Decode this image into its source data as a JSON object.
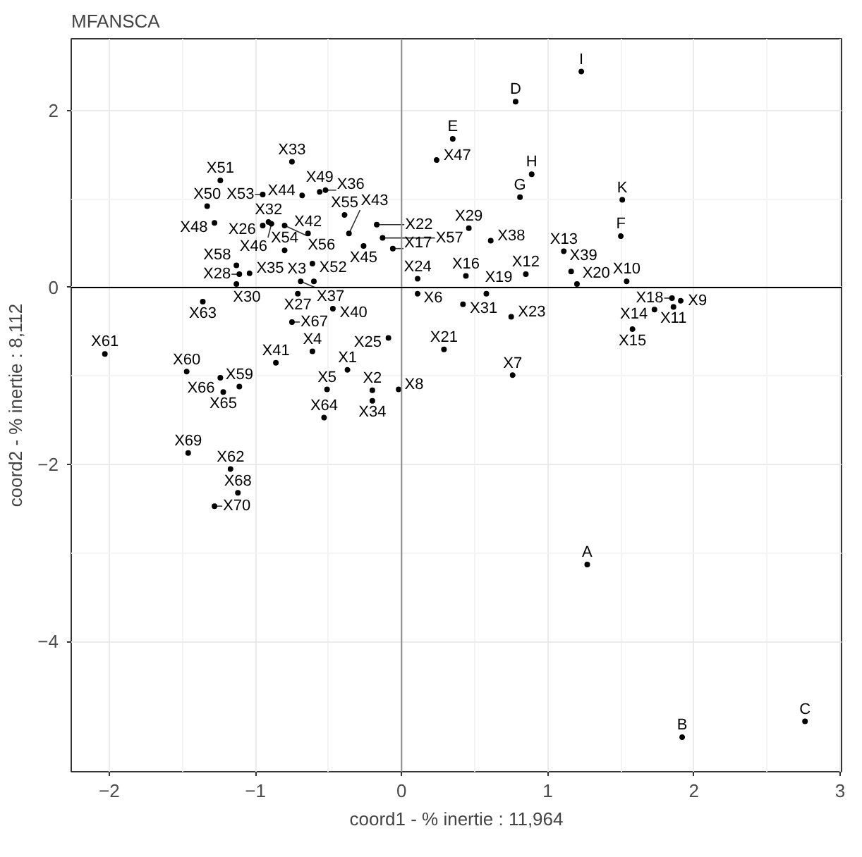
{
  "chart_data": {
    "type": "scatter",
    "title": "MFANSCA",
    "xlabel": "coord1 - % inertie : 11,964",
    "ylabel": "coord2 - % inertie : 8,112",
    "xlim": [
      -2.26,
      3.01
    ],
    "ylim": [
      -5.47,
      2.81
    ],
    "xticks": [
      -2,
      -1,
      0,
      1,
      2,
      3
    ],
    "yticks": [
      -4,
      -2,
      0,
      2
    ],
    "grid": true,
    "marker": "circle",
    "ref_lines": [
      {
        "axis": "x",
        "value": 0,
        "label": null,
        "color": "#8c8c8c"
      },
      {
        "axis": "y",
        "value": 0,
        "label": null,
        "color": "#000000"
      }
    ],
    "series": [
      {
        "color": "#000000",
        "x": [
          -0.37,
          -0.2,
          -0.6,
          -0.61,
          -0.51,
          0.11,
          0.76,
          -0.02,
          1.91,
          1.54,
          1.86,
          0.85,
          1.11,
          1.73,
          1.58,
          0.44,
          -0.06,
          1.85,
          0.58,
          1.2,
          0.29,
          -0.17,
          0.75,
          0.11,
          -0.09,
          -0.95,
          -0.71,
          -1.11,
          0.46,
          -1.13,
          0.42,
          -0.91,
          -0.75,
          -0.2,
          -1.04,
          -0.52,
          -0.69,
          0.61,
          1.16,
          -0.47,
          -0.86,
          -0.64,
          -0.36,
          -0.68,
          -0.26,
          -0.89,
          0.24,
          -1.28,
          -0.56,
          -1.33,
          -1.24,
          -0.61,
          -0.95,
          -0.8,
          -0.39,
          -0.8,
          -0.13,
          -1.13,
          -1.11,
          -1.47,
          -2.03,
          -1.17,
          -1.36,
          -0.53,
          -1.22,
          -1.24,
          -0.75,
          -1.12,
          -1.46,
          -1.28,
          1.27,
          1.92,
          2.76,
          0.78,
          0.35,
          1.5,
          0.81,
          0.89,
          1.23,
          1.51
        ],
        "values": [
          -0.93,
          -1.16,
          0.07,
          -0.72,
          -1.15,
          -0.07,
          -0.99,
          -1.15,
          -0.15,
          0.07,
          -0.22,
          0.15,
          0.41,
          -0.25,
          -0.47,
          0.13,
          0.44,
          -0.12,
          -0.07,
          0.04,
          -0.7,
          0.71,
          -0.33,
          0.1,
          -0.57,
          0.7,
          -0.07,
          0.15,
          0.67,
          0.04,
          -0.19,
          0.74,
          1.42,
          -1.28,
          0.16,
          1.1,
          0.07,
          0.53,
          0.18,
          -0.24,
          -0.85,
          0.61,
          0.61,
          1.04,
          0.47,
          0.72,
          1.44,
          0.73,
          1.08,
          0.92,
          1.21,
          0.27,
          1.05,
          0.42,
          0.82,
          0.7,
          0.56,
          0.25,
          -1.12,
          -0.95,
          -0.75,
          -2.05,
          -0.16,
          -1.47,
          -1.18,
          -1.02,
          -0.39,
          -2.32,
          -1.87,
          -2.47,
          -3.13,
          -5.08,
          -4.9,
          2.1,
          1.68,
          0.58,
          1.02,
          1.28,
          2.44,
          0.99
        ],
        "value_labels": [
          "X1",
          "X2",
          "X3",
          "X4",
          "X5",
          "X6",
          "X7",
          "X8",
          "X9",
          "X10",
          "X11",
          "X12",
          "X13",
          "X14",
          "X15",
          "X16",
          "X17",
          "X18",
          "X19",
          "X20",
          "X21",
          "X22",
          "X23",
          "X24",
          "X25",
          "X26",
          "X27",
          "X28",
          "X29",
          "X30",
          "X31",
          "X32",
          "X33",
          "X34",
          "X35",
          "X36",
          "X37",
          "X38",
          "X39",
          "X40",
          "X41",
          "X42",
          "X43",
          "X44",
          "X45",
          "X46",
          "X47",
          "X48",
          "X49",
          "X50",
          "X51",
          "X52",
          "X53",
          "X54",
          "X55",
          "X56",
          "X57",
          "X58",
          "X59",
          "X60",
          "X61",
          "X62",
          "X63",
          "X64",
          "X65",
          "X66",
          "X67",
          "X68",
          "X69",
          "X70",
          "A",
          "B",
          "C",
          "D",
          "E",
          "F",
          "G",
          "H",
          "I",
          "K"
        ]
      }
    ]
  }
}
